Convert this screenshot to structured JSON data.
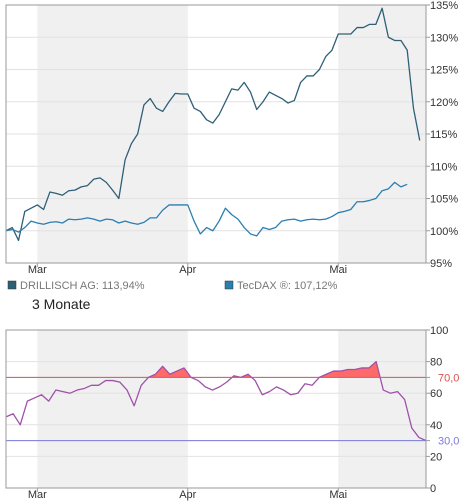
{
  "legend": [
    {
      "label": "DRILLISCH AG: 113,94%",
      "color": "#2e5f76"
    },
    {
      "label": "TecDAX ®: 107,12%",
      "color": "#2b7eb0"
    }
  ],
  "period_label": "3 Monate",
  "rsi_reference_labels": {
    "upper": "70,0",
    "lower": "30,0"
  },
  "chart_data": [
    {
      "type": "line",
      "x_labels": [
        "Mar",
        "Apr",
        "Mai"
      ],
      "x_label_index": [
        5,
        29,
        53
      ],
      "ylim": [
        95,
        135
      ],
      "y_ticks": [
        95,
        100,
        105,
        110,
        115,
        120,
        125,
        130,
        135
      ],
      "y_tick_labels": [
        "95%",
        "100%",
        "105%",
        "110%",
        "115%",
        "120%",
        "125%",
        "130%",
        "135%"
      ],
      "shaded_bands_index": [
        [
          5,
          29
        ],
        [
          53,
          67
        ]
      ],
      "series": [
        {
          "name": "DRILLISCH AG",
          "color": "#2e5f76",
          "values": [
            100,
            100.5,
            98.5,
            103,
            103.5,
            104,
            103.3,
            106,
            105.8,
            105.5,
            106.2,
            106.3,
            106.8,
            107,
            108,
            108.2,
            107.5,
            106.3,
            105,
            111,
            113.5,
            115,
            119.5,
            120.5,
            119,
            118.5,
            120,
            121.3,
            121.2,
            121.2,
            119,
            118.5,
            117.2,
            116.7,
            118,
            120,
            122,
            121.8,
            123,
            121.5,
            118.8,
            120,
            121.5,
            121,
            120.5,
            119.8,
            120.2,
            123,
            124,
            124,
            125,
            127,
            128,
            130.5,
            130.5,
            130.5,
            131.5,
            131.5,
            132,
            132,
            134.5,
            130,
            129.5,
            129.5,
            128,
            119,
            114
          ]
        },
        {
          "name": "TecDAX ®",
          "color": "#2b7eb0",
          "values": [
            100,
            100.2,
            99.8,
            100.5,
            101.5,
            101.2,
            101,
            101.3,
            101.4,
            101.2,
            101.8,
            101.7,
            101.8,
            102,
            101.8,
            101.5,
            101.8,
            101.7,
            101.2,
            101.5,
            101.2,
            101,
            101.3,
            102,
            102,
            103.2,
            104,
            104,
            104,
            104,
            101.5,
            99.5,
            100.5,
            100,
            101.5,
            103.5,
            102.5,
            101.8,
            100.5,
            99.5,
            99.2,
            100.5,
            100.2,
            100.5,
            101.5,
            101.7,
            101.8,
            101.5,
            101.7,
            101.8,
            101.7,
            101.8,
            102.2,
            102.8,
            103,
            103.3,
            104.5,
            104.5,
            104.7,
            105,
            106.2,
            106.5,
            107.5,
            106.8,
            107.2
          ]
        }
      ]
    },
    {
      "type": "line",
      "x_labels": [
        "Mar",
        "Apr",
        "Mai"
      ],
      "x_label_index": [
        5,
        29,
        53
      ],
      "ylim": [
        0,
        100
      ],
      "y_ticks": [
        0,
        20,
        30,
        40,
        60,
        70,
        80,
        100
      ],
      "y_tick_labels": [
        "0",
        "20",
        "",
        "40",
        "60",
        "",
        "80",
        "100"
      ],
      "reference_lines": [
        {
          "value": 70,
          "label": "70,0",
          "color": "#d9534f"
        },
        {
          "value": 30,
          "label": "30,0",
          "color": "#7b7bd9"
        }
      ],
      "shaded_bands_index": [
        [
          5,
          29
        ],
        [
          53,
          67
        ]
      ],
      "series": [
        {
          "color": "#a052a8",
          "fill_above_70": "#ff5a5a",
          "values": [
            45,
            47,
            40,
            55,
            57,
            59,
            55,
            62,
            61,
            60,
            62,
            63,
            65,
            65,
            68,
            68,
            67,
            62,
            52,
            65,
            70,
            72,
            77,
            72,
            74,
            76,
            70,
            68,
            64,
            62,
            64,
            67,
            71,
            70,
            72,
            68,
            59,
            61,
            64,
            62,
            59,
            60,
            66,
            65,
            70,
            72,
            74,
            74,
            75,
            75,
            76,
            76,
            80,
            62,
            60,
            61,
            56,
            38,
            32,
            30
          ]
        }
      ]
    }
  ]
}
